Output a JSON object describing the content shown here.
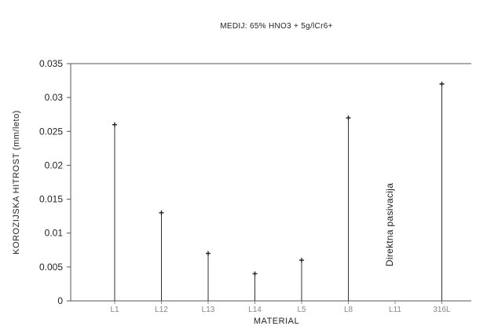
{
  "chart_data": {
    "type": "stem",
    "title": "MEDIJ: 65% HNO3 + 5g/lCr6+",
    "xlabel": "MATERIAL",
    "ylabel": "KOROZIJSKA HITROST (mm/leto)",
    "categories": [
      "L1",
      "L12",
      "L13",
      "L14",
      "L5",
      "L8",
      "L11",
      "316L"
    ],
    "values": [
      0.026,
      0.013,
      0.007,
      0.004,
      0.006,
      0.027,
      null,
      0.032
    ],
    "ylim": [
      0,
      0.035
    ],
    "yticks": [
      "0",
      "0.005",
      "0.01",
      "0.015",
      "0.02",
      "0.025",
      "0.03",
      "0.035"
    ],
    "grid": false,
    "annotations": [
      {
        "category": "L11",
        "text": "Direktna pasivacija"
      }
    ]
  }
}
